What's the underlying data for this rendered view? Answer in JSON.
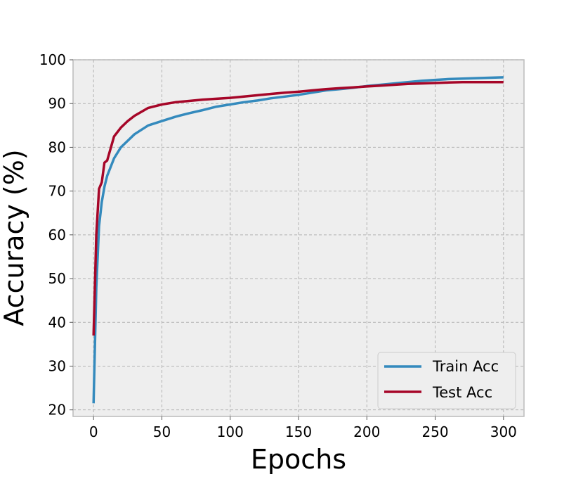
{
  "chart_data": {
    "type": "line",
    "xlabel": "Epochs",
    "ylabel": "Accuracy (%)",
    "xlim": [
      -15,
      315
    ],
    "ylim": [
      18.5,
      100
    ],
    "xticks": [
      0,
      50,
      100,
      150,
      200,
      250,
      300
    ],
    "yticks": [
      20,
      30,
      40,
      50,
      60,
      70,
      80,
      90,
      100
    ],
    "grid": true,
    "legend_position": "lower-right",
    "series": [
      {
        "name": "Train Acc",
        "color": "#348ABD",
        "x": [
          0,
          2,
          4,
          6,
          8,
          10,
          15,
          20,
          25,
          30,
          40,
          50,
          60,
          70,
          80,
          90,
          100,
          110,
          120,
          130,
          140,
          150,
          160,
          170,
          180,
          190,
          200,
          210,
          220,
          230,
          240,
          250,
          260,
          270,
          280,
          290,
          300
        ],
        "y": [
          21.5,
          48,
          62,
          67.5,
          71,
          73.5,
          77.5,
          80,
          81.5,
          83,
          85,
          86,
          87,
          87.8,
          88.5,
          89.3,
          89.8,
          90.3,
          90.7,
          91.2,
          91.6,
          92,
          92.5,
          93,
          93.3,
          93.6,
          94,
          94.3,
          94.6,
          94.9,
          95.2,
          95.4,
          95.6,
          95.7,
          95.8,
          95.9,
          96
        ]
      },
      {
        "name": "Test Acc",
        "color": "#A60628",
        "x": [
          0,
          2,
          4,
          6,
          8,
          10,
          15,
          20,
          25,
          30,
          40,
          50,
          60,
          70,
          80,
          90,
          100,
          110,
          120,
          130,
          140,
          150,
          160,
          170,
          180,
          190,
          200,
          210,
          220,
          230,
          240,
          250,
          260,
          270,
          280,
          290,
          300
        ],
        "y": [
          37,
          60,
          70.5,
          72,
          76.5,
          77,
          82.5,
          84.5,
          86,
          87.2,
          89,
          89.8,
          90.3,
          90.6,
          90.9,
          91.1,
          91.3,
          91.6,
          91.9,
          92.2,
          92.5,
          92.7,
          93,
          93.3,
          93.5,
          93.7,
          93.9,
          94.1,
          94.3,
          94.5,
          94.6,
          94.7,
          94.8,
          94.9,
          94.9,
          94.9,
          94.9
        ]
      }
    ]
  }
}
